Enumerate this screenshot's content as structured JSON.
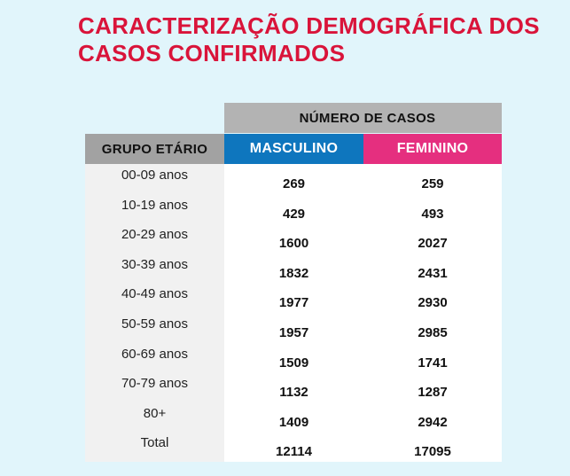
{
  "title": {
    "line1": "CARACTERIZAÇÃO DEMOGRÁFICA DOS",
    "line2": "CASOS CONFIRMADOS"
  },
  "table": {
    "group_header": "NÚMERO DE CASOS",
    "age_header": "GRUPO ETÁRIO",
    "male_header": "MASCULINO",
    "female_header": "FEMININO",
    "rows": [
      {
        "age": "00-09 anos",
        "male": "269",
        "female": "259"
      },
      {
        "age": "10-19 anos",
        "male": "429",
        "female": "493"
      },
      {
        "age": "20-29 anos",
        "male": "1600",
        "female": "2027"
      },
      {
        "age": "30-39 anos",
        "male": "1832",
        "female": "2431"
      },
      {
        "age": "40-49 anos",
        "male": "1977",
        "female": "2930"
      },
      {
        "age": "50-59 anos",
        "male": "1957",
        "female": "2985"
      },
      {
        "age": "60-69 anos",
        "male": "1509",
        "female": "1741"
      },
      {
        "age": "70-79 anos",
        "male": "1132",
        "female": "1287"
      },
      {
        "age": "80+",
        "male": "1409",
        "female": "2942"
      },
      {
        "age": "Total",
        "male": "12114",
        "female": "17095"
      }
    ]
  },
  "colors": {
    "background": "#e1f5fb",
    "title": "#d9143a",
    "male": "#0e76be",
    "female": "#e52f7f",
    "header_gray": "#b3b3b3"
  }
}
